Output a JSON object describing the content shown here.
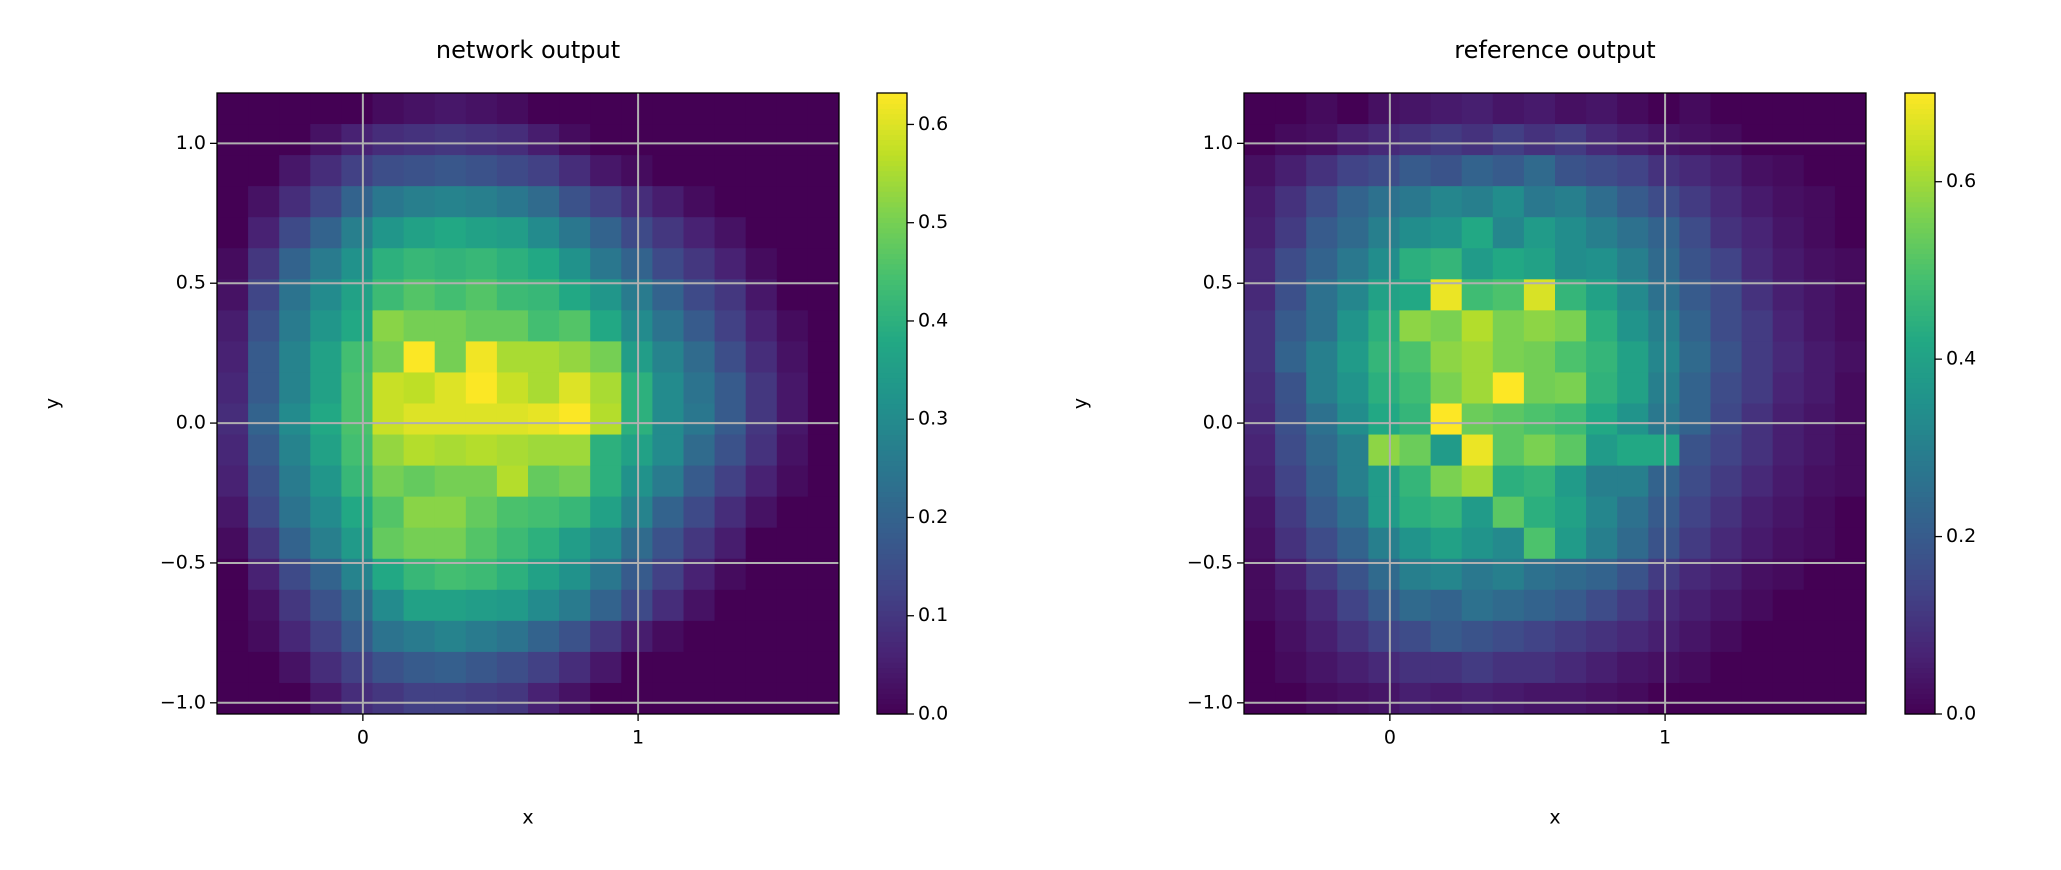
{
  "chart_data": [
    {
      "type": "heatmap",
      "title": "network output",
      "x_label": "x",
      "y_label": "y",
      "colormap": "viridis",
      "grid": true,
      "xlim": [
        -0.53,
        1.73
      ],
      "ylim": [
        -1.04,
        1.18
      ],
      "xticks": [
        0,
        1
      ],
      "yticks": [
        {
          "value": -1,
          "label": "−1.0"
        },
        {
          "value": -0.5,
          "label": "−0.5"
        },
        {
          "value": 0,
          "label": "0.0"
        },
        0.5,
        {
          "value": 1,
          "label": "1.0"
        }
      ],
      "zlim": [
        0,
        0.632
      ],
      "zticks": [
        {
          "value": 0,
          "label": "0.0"
        },
        0.1,
        0.2,
        0.3,
        0.4,
        0.5,
        0.6
      ],
      "xbins": [
        -0.53,
        -0.417,
        -0.304,
        -0.191,
        -0.078,
        0.035,
        0.148,
        0.261,
        0.374,
        0.487,
        0.6,
        0.713,
        0.826,
        0.939,
        1.052,
        1.165,
        1.278,
        1.391,
        1.504,
        1.617,
        1.73
      ],
      "ybins": [
        1.18,
        1.069,
        0.958,
        0.847,
        0.736,
        0.625,
        0.514,
        0.403,
        0.292,
        0.181,
        0.07,
        -0.041,
        -0.152,
        -0.263,
        -0.374,
        -0.485,
        -0.596,
        -0.707,
        -0.818,
        -0.929,
        -1.04
      ],
      "values": [
        [
          0,
          0,
          0,
          0,
          0,
          0.02,
          0.03,
          0.04,
          0.03,
          0.02,
          0,
          0,
          0,
          0,
          0,
          0,
          0,
          0,
          0,
          0
        ],
        [
          0,
          0,
          0,
          0.03,
          0.06,
          0.08,
          0.09,
          0.1,
          0.09,
          0.08,
          0.05,
          0.02,
          0,
          0,
          0,
          0,
          0,
          0,
          0,
          0
        ],
        [
          0,
          0,
          0.04,
          0.08,
          0.12,
          0.15,
          0.16,
          0.17,
          0.16,
          0.14,
          0.12,
          0.08,
          0.04,
          0.02,
          0,
          0,
          0,
          0,
          0,
          0
        ],
        [
          0,
          0.03,
          0.08,
          0.13,
          0.2,
          0.25,
          0.27,
          0.28,
          0.27,
          0.25,
          0.22,
          0.16,
          0.12,
          0.08,
          0.05,
          0.02,
          0,
          0,
          0,
          0
        ],
        [
          0,
          0.06,
          0.14,
          0.2,
          0.27,
          0.33,
          0.36,
          0.38,
          0.36,
          0.35,
          0.3,
          0.25,
          0.2,
          0.14,
          0.1,
          0.06,
          0.03,
          0,
          0,
          0
        ],
        [
          0.02,
          0.1,
          0.2,
          0.26,
          0.32,
          0.4,
          0.42,
          0.41,
          0.42,
          0.4,
          0.38,
          0.32,
          0.25,
          0.2,
          0.14,
          0.1,
          0.06,
          0.02,
          0,
          0
        ],
        [
          0.03,
          0.13,
          0.24,
          0.3,
          0.36,
          0.43,
          0.46,
          0.44,
          0.46,
          0.43,
          0.42,
          0.38,
          0.33,
          0.26,
          0.2,
          0.14,
          0.1,
          0.04,
          0,
          0
        ],
        [
          0.05,
          0.16,
          0.26,
          0.33,
          0.38,
          0.52,
          0.5,
          0.5,
          0.48,
          0.48,
          0.44,
          0.46,
          0.38,
          0.3,
          0.24,
          0.18,
          0.12,
          0.06,
          0.02,
          0
        ],
        [
          0.06,
          0.18,
          0.28,
          0.36,
          0.44,
          0.5,
          0.63,
          0.5,
          0.62,
          0.55,
          0.55,
          0.53,
          0.5,
          0.35,
          0.28,
          0.22,
          0.15,
          0.08,
          0.03,
          0
        ],
        [
          0.07,
          0.18,
          0.28,
          0.36,
          0.45,
          0.58,
          0.57,
          0.6,
          0.63,
          0.58,
          0.55,
          0.6,
          0.55,
          0.4,
          0.3,
          0.24,
          0.18,
          0.1,
          0.04,
          0
        ],
        [
          0.08,
          0.2,
          0.3,
          0.38,
          0.45,
          0.58,
          0.6,
          0.6,
          0.6,
          0.6,
          0.61,
          0.63,
          0.56,
          0.4,
          0.3,
          0.25,
          0.18,
          0.1,
          0.04,
          0
        ],
        [
          0.07,
          0.18,
          0.28,
          0.36,
          0.44,
          0.53,
          0.56,
          0.55,
          0.56,
          0.55,
          0.54,
          0.54,
          0.4,
          0.36,
          0.3,
          0.22,
          0.16,
          0.09,
          0.03,
          0
        ],
        [
          0.06,
          0.16,
          0.26,
          0.33,
          0.42,
          0.5,
          0.48,
          0.5,
          0.5,
          0.56,
          0.48,
          0.5,
          0.4,
          0.32,
          0.26,
          0.18,
          0.12,
          0.06,
          0.02,
          0
        ],
        [
          0.04,
          0.14,
          0.24,
          0.3,
          0.38,
          0.46,
          0.52,
          0.52,
          0.48,
          0.45,
          0.44,
          0.42,
          0.36,
          0.28,
          0.2,
          0.14,
          0.08,
          0.03,
          0,
          0
        ],
        [
          0.02,
          0.1,
          0.2,
          0.27,
          0.34,
          0.48,
          0.5,
          0.5,
          0.46,
          0.43,
          0.4,
          0.35,
          0.3,
          0.22,
          0.16,
          0.1,
          0.05,
          0,
          0,
          0
        ],
        [
          0,
          0.06,
          0.14,
          0.2,
          0.28,
          0.38,
          0.42,
          0.44,
          0.43,
          0.4,
          0.36,
          0.32,
          0.25,
          0.18,
          0.12,
          0.06,
          0.02,
          0,
          0,
          0
        ],
        [
          0,
          0.03,
          0.1,
          0.16,
          0.22,
          0.3,
          0.36,
          0.36,
          0.35,
          0.34,
          0.3,
          0.26,
          0.2,
          0.14,
          0.08,
          0.03,
          0,
          0,
          0,
          0
        ],
        [
          0,
          0.02,
          0.07,
          0.12,
          0.18,
          0.24,
          0.26,
          0.28,
          0.26,
          0.24,
          0.2,
          0.16,
          0.1,
          0.05,
          0.02,
          0,
          0,
          0,
          0,
          0
        ],
        [
          0,
          0,
          0.03,
          0.08,
          0.12,
          0.16,
          0.18,
          0.19,
          0.17,
          0.15,
          0.12,
          0.08,
          0.04,
          0,
          0,
          0,
          0,
          0,
          0,
          0
        ],
        [
          0,
          0,
          0,
          0.04,
          0.08,
          0.1,
          0.12,
          0.12,
          0.11,
          0.1,
          0.06,
          0.03,
          0,
          0,
          0,
          0,
          0,
          0,
          0,
          0
        ]
      ]
    },
    {
      "type": "heatmap",
      "title": "reference output",
      "x_label": "x",
      "y_label": "y",
      "colormap": "viridis",
      "grid": true,
      "xlim": [
        -0.53,
        1.73
      ],
      "ylim": [
        -1.04,
        1.18
      ],
      "xticks": [
        0,
        1
      ],
      "yticks": [
        {
          "value": -1,
          "label": "−1.0"
        },
        {
          "value": -0.5,
          "label": "−0.5"
        },
        {
          "value": 0,
          "label": "0.0"
        },
        0.5,
        {
          "value": 1,
          "label": "1.0"
        }
      ],
      "zlim": [
        0,
        0.7
      ],
      "zticks": [
        {
          "value": 0,
          "label": "0.0"
        },
        0.2,
        0.4,
        0.6
      ],
      "xbins": [
        -0.53,
        -0.417,
        -0.304,
        -0.191,
        -0.078,
        0.035,
        0.148,
        0.261,
        0.374,
        0.487,
        0.6,
        0.713,
        0.826,
        0.939,
        1.052,
        1.165,
        1.278,
        1.391,
        1.504,
        1.617,
        1.73
      ],
      "ybins": [
        1.18,
        1.069,
        0.958,
        0.847,
        0.736,
        0.625,
        0.514,
        0.403,
        0.292,
        0.181,
        0.07,
        -0.041,
        -0.152,
        -0.263,
        -0.374,
        -0.485,
        -0.596,
        -0.707,
        -0.818,
        -0.929,
        -1.04
      ],
      "values": [
        [
          0,
          0,
          0.02,
          0,
          0.03,
          0.04,
          0.05,
          0.06,
          0.04,
          0.05,
          0.03,
          0.04,
          0.02,
          0,
          0.02,
          0,
          0,
          0,
          0,
          0
        ],
        [
          0,
          0.02,
          0.03,
          0.06,
          0.08,
          0.1,
          0.12,
          0.1,
          0.13,
          0.1,
          0.12,
          0.08,
          0.06,
          0.04,
          0.03,
          0.02,
          0,
          0,
          0,
          0
        ],
        [
          0.03,
          0.06,
          0.1,
          0.14,
          0.16,
          0.2,
          0.18,
          0.22,
          0.2,
          0.24,
          0.18,
          0.16,
          0.14,
          0.1,
          0.08,
          0.06,
          0.03,
          0.02,
          0,
          0
        ],
        [
          0.05,
          0.1,
          0.16,
          0.22,
          0.26,
          0.28,
          0.32,
          0.3,
          0.34,
          0.28,
          0.3,
          0.25,
          0.2,
          0.16,
          0.12,
          0.08,
          0.05,
          0.03,
          0.02,
          0
        ],
        [
          0.06,
          0.12,
          0.2,
          0.24,
          0.3,
          0.34,
          0.36,
          0.42,
          0.32,
          0.38,
          0.34,
          0.3,
          0.26,
          0.22,
          0.16,
          0.1,
          0.07,
          0.04,
          0.02,
          0
        ],
        [
          0.08,
          0.16,
          0.22,
          0.28,
          0.34,
          0.44,
          0.46,
          0.38,
          0.42,
          0.4,
          0.34,
          0.35,
          0.3,
          0.24,
          0.18,
          0.14,
          0.08,
          0.05,
          0.03,
          0.02
        ],
        [
          0.08,
          0.17,
          0.26,
          0.32,
          0.4,
          0.42,
          0.68,
          0.48,
          0.5,
          0.66,
          0.46,
          0.4,
          0.33,
          0.26,
          0.2,
          0.16,
          0.1,
          0.06,
          0.04,
          0.02
        ],
        [
          0.1,
          0.2,
          0.26,
          0.36,
          0.44,
          0.58,
          0.56,
          0.62,
          0.56,
          0.58,
          0.56,
          0.44,
          0.36,
          0.3,
          0.22,
          0.16,
          0.12,
          0.07,
          0.04,
          0.02
        ],
        [
          0.1,
          0.22,
          0.3,
          0.38,
          0.46,
          0.5,
          0.58,
          0.6,
          0.56,
          0.55,
          0.5,
          0.46,
          0.4,
          0.32,
          0.24,
          0.18,
          0.12,
          0.08,
          0.05,
          0.03
        ],
        [
          0.09,
          0.18,
          0.3,
          0.36,
          0.44,
          0.48,
          0.56,
          0.6,
          0.7,
          0.55,
          0.56,
          0.45,
          0.4,
          0.3,
          0.22,
          0.16,
          0.12,
          0.07,
          0.05,
          0.02
        ],
        [
          0.08,
          0.17,
          0.26,
          0.34,
          0.42,
          0.46,
          0.7,
          0.54,
          0.52,
          0.5,
          0.48,
          0.42,
          0.36,
          0.28,
          0.22,
          0.15,
          0.1,
          0.06,
          0.04,
          0.02
        ],
        [
          0.07,
          0.16,
          0.24,
          0.3,
          0.58,
          0.54,
          0.38,
          0.68,
          0.52,
          0.56,
          0.52,
          0.38,
          0.42,
          0.42,
          0.18,
          0.14,
          0.1,
          0.06,
          0.04,
          0.02
        ],
        [
          0.06,
          0.14,
          0.22,
          0.3,
          0.38,
          0.46,
          0.56,
          0.6,
          0.44,
          0.46,
          0.38,
          0.3,
          0.3,
          0.22,
          0.16,
          0.12,
          0.08,
          0.05,
          0.03,
          0.02
        ],
        [
          0.04,
          0.12,
          0.2,
          0.26,
          0.38,
          0.44,
          0.46,
          0.38,
          0.52,
          0.44,
          0.4,
          0.32,
          0.26,
          0.2,
          0.14,
          0.1,
          0.06,
          0.04,
          0.02,
          0
        ],
        [
          0.03,
          0.1,
          0.16,
          0.22,
          0.3,
          0.36,
          0.4,
          0.36,
          0.33,
          0.5,
          0.38,
          0.3,
          0.24,
          0.18,
          0.12,
          0.08,
          0.05,
          0.03,
          0.02,
          0
        ],
        [
          0.02,
          0.06,
          0.12,
          0.18,
          0.24,
          0.3,
          0.32,
          0.28,
          0.3,
          0.26,
          0.24,
          0.22,
          0.18,
          0.12,
          0.08,
          0.06,
          0.03,
          0.02,
          0,
          0
        ],
        [
          0.02,
          0.04,
          0.08,
          0.14,
          0.2,
          0.24,
          0.22,
          0.26,
          0.24,
          0.22,
          0.2,
          0.16,
          0.12,
          0.08,
          0.06,
          0.04,
          0.02,
          0,
          0,
          0
        ],
        [
          0,
          0.03,
          0.06,
          0.1,
          0.14,
          0.16,
          0.2,
          0.18,
          0.16,
          0.14,
          0.12,
          0.1,
          0.08,
          0.06,
          0.04,
          0.02,
          0,
          0,
          0,
          0
        ],
        [
          0,
          0.02,
          0.04,
          0.06,
          0.08,
          0.1,
          0.1,
          0.12,
          0.1,
          0.1,
          0.08,
          0.06,
          0.04,
          0.03,
          0.02,
          0,
          0,
          0,
          0,
          0
        ],
        [
          0,
          0,
          0.02,
          0.03,
          0.04,
          0.06,
          0.05,
          0.06,
          0.05,
          0.04,
          0.04,
          0.03,
          0.02,
          0,
          0,
          0,
          0,
          0,
          0,
          0
        ]
      ]
    }
  ]
}
